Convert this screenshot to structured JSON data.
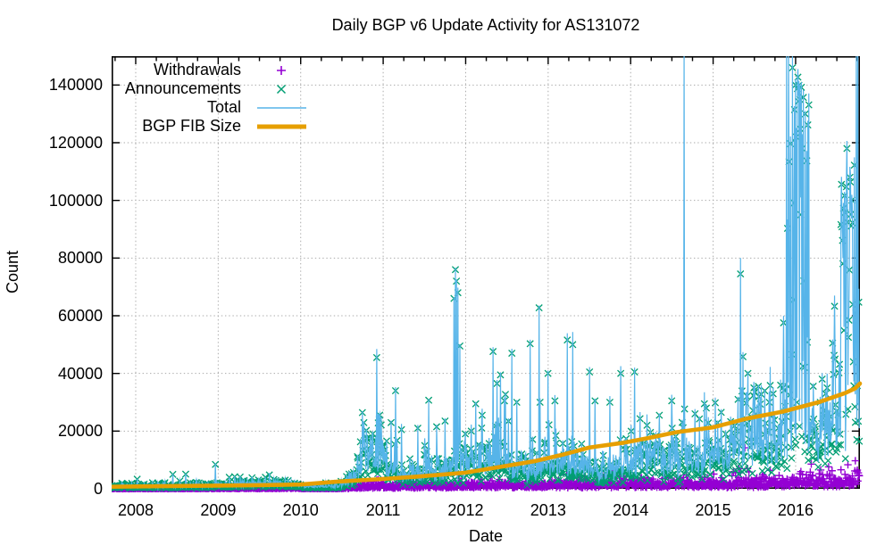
{
  "title": "Daily BGP v6 Update Activity for AS131072",
  "chart_data": {
    "type": "mixed-scatter-line",
    "title": "Daily BGP v6 Update Activity for AS131072",
    "xlabel": "Date",
    "ylabel": "Count",
    "xlim": [
      2007.708,
      2016.78
    ],
    "ylim": [
      0,
      150000
    ],
    "xticks": [
      2008,
      2009,
      2010,
      2011,
      2012,
      2013,
      2014,
      2015,
      2016
    ],
    "xtick_labels": [
      "2008",
      "2009",
      "2010",
      "2011",
      "2012",
      "2013",
      "2014",
      "2015",
      "2016"
    ],
    "x_minor_tick_interval_years": 0.25,
    "yticks": [
      0,
      20000,
      40000,
      60000,
      80000,
      100000,
      120000,
      140000
    ],
    "ytick_labels": [
      "0",
      "20000",
      "40000",
      "60000",
      "80000",
      "100000",
      "120000",
      "140000"
    ],
    "grid": "dotted-gray-at-major-ticks",
    "legend_position": "inside-top-left",
    "legend": [
      {
        "label": "Withdrawals",
        "marker": "plus",
        "color": "#9400d3"
      },
      {
        "label": "Announcements",
        "marker": "cross",
        "color": "#009e73"
      },
      {
        "label": "Total",
        "marker": "line",
        "color": "#56b4e9"
      },
      {
        "label": "BGP FIB Size",
        "marker": "thick-line",
        "color": "#e69f00"
      }
    ],
    "series": {
      "daily_baseline_x_ann_wd": [
        [
          2007.72,
          700,
          120
        ],
        [
          2008.5,
          800,
          150
        ],
        [
          2009.0,
          1000,
          200
        ],
        [
          2009.5,
          1500,
          250
        ],
        [
          2009.95,
          1300,
          300
        ],
        [
          2010.05,
          500,
          150
        ],
        [
          2010.45,
          700,
          150
        ],
        [
          2010.62,
          2500,
          400
        ],
        [
          2010.75,
          9000,
          700
        ],
        [
          2010.95,
          11000,
          900
        ],
        [
          2011.1,
          6000,
          800
        ],
        [
          2011.3,
          4000,
          800
        ],
        [
          2011.6,
          5000,
          900
        ],
        [
          2011.9,
          7000,
          1000
        ],
        [
          2012.1,
          8000,
          1100
        ],
        [
          2012.35,
          9000,
          1200
        ],
        [
          2012.6,
          7000,
          1100
        ],
        [
          2012.8,
          5500,
          1000
        ],
        [
          2013.0,
          7000,
          1300
        ],
        [
          2013.4,
          6500,
          1500
        ],
        [
          2013.7,
          4200,
          1500
        ],
        [
          2014.0,
          8000,
          1600
        ],
        [
          2014.3,
          9500,
          1500
        ],
        [
          2014.55,
          7000,
          1400
        ],
        [
          2014.8,
          9000,
          1500
        ],
        [
          2015.0,
          10500,
          1500
        ],
        [
          2015.3,
          12000,
          1600
        ],
        [
          2015.5,
          16000,
          1700
        ],
        [
          2015.75,
          17000,
          1800
        ],
        [
          2015.9,
          22000,
          2000
        ],
        [
          2016.1,
          26000,
          2200
        ],
        [
          2016.25,
          14000,
          2000
        ],
        [
          2016.42,
          18000,
          2200
        ],
        [
          2016.6,
          30000,
          2500
        ],
        [
          2016.7,
          35000,
          2800
        ],
        [
          2016.78,
          33000,
          4500
        ]
      ],
      "announcement_spikes_x_value": [
        [
          2008.45,
          5000
        ],
        [
          2009.2,
          4200
        ],
        [
          2009.62,
          4800
        ],
        [
          2010.92,
          45500
        ],
        [
          2011.15,
          34000
        ],
        [
          2011.22,
          20500
        ],
        [
          2011.42,
          21000
        ],
        [
          2011.55,
          30700
        ],
        [
          2011.65,
          21500
        ],
        [
          2011.75,
          23500
        ],
        [
          2011.86,
          66000
        ],
        [
          2011.875,
          76000
        ],
        [
          2011.89,
          72000
        ],
        [
          2011.905,
          68000
        ],
        [
          2011.93,
          49500
        ],
        [
          2012.07,
          20000
        ],
        [
          2012.2,
          25500
        ],
        [
          2012.33,
          47600
        ],
        [
          2012.38,
          36500
        ],
        [
          2012.42,
          39500
        ],
        [
          2012.47,
          30500
        ],
        [
          2012.56,
          47000
        ],
        [
          2012.62,
          30000
        ],
        [
          2012.78,
          50300
        ],
        [
          2012.9,
          30000
        ],
        [
          2013.0,
          40000
        ],
        [
          2013.08,
          30500
        ],
        [
          2013.3,
          50000
        ],
        [
          2013.5,
          40500
        ],
        [
          2013.57,
          30500
        ],
        [
          2013.75,
          30000
        ],
        [
          2013.88,
          40000
        ],
        [
          2014.05,
          40500
        ],
        [
          2014.2,
          22000
        ],
        [
          2014.35,
          25500
        ],
        [
          2014.5,
          30500
        ],
        [
          2014.65,
          155000
        ],
        [
          2014.78,
          26000
        ],
        [
          2014.92,
          28000
        ],
        [
          2015.1,
          26500
        ],
        [
          2015.3,
          31000
        ],
        [
          2015.33,
          74500
        ],
        [
          2015.42,
          40000
        ],
        [
          2015.55,
          35500
        ],
        [
          2015.68,
          30000
        ],
        [
          2015.85,
          35000
        ],
        [
          2015.89,
          152000
        ],
        [
          2015.915,
          152000
        ],
        [
          2015.96,
          146000
        ],
        [
          2016.0,
          140000
        ],
        [
          2016.05,
          135000
        ],
        [
          2016.12,
          130000
        ],
        [
          2016.3,
          30000
        ],
        [
          2016.38,
          35000
        ],
        [
          2016.45,
          50500
        ],
        [
          2016.48,
          45000
        ],
        [
          2016.62,
          118000
        ],
        [
          2016.66,
          108000
        ],
        [
          2016.735,
          155000
        ],
        [
          2016.755,
          155000
        ]
      ],
      "burst_windows": [
        {
          "x0": 2015.88,
          "x1": 2016.17,
          "lo": 45000,
          "hi": 143000,
          "p": 0.5
        },
        {
          "x0": 2016.54,
          "x1": 2016.72,
          "lo": 40000,
          "hi": 116000,
          "p": 0.5
        }
      ],
      "withdrawal_outliers_x_value": [
        [
          2015.62,
          4200
        ],
        [
          2015.8,
          4600
        ],
        [
          2016.05,
          5200
        ],
        [
          2016.2,
          4700
        ],
        [
          2016.33,
          4800
        ],
        [
          2016.42,
          4900
        ],
        [
          2016.6,
          5000
        ],
        [
          2016.74,
          6000
        ],
        [
          2016.76,
          5500
        ],
        [
          2016.77,
          4500
        ]
      ],
      "total_rule": "total = announcements + withdrawals (sky-blue line)",
      "fib_line_x_value": [
        [
          2007.72,
          700
        ],
        [
          2008.3,
          900
        ],
        [
          2009.0,
          1100
        ],
        [
          2009.6,
          1300
        ],
        [
          2010.0,
          1500
        ],
        [
          2010.45,
          2500
        ],
        [
          2011.0,
          3400
        ],
        [
          2011.4,
          4200
        ],
        [
          2011.75,
          5000
        ],
        [
          2012.0,
          5600
        ],
        [
          2012.4,
          7500
        ],
        [
          2012.85,
          9650
        ],
        [
          2013.2,
          12000
        ],
        [
          2013.5,
          14300
        ],
        [
          2013.9,
          15900
        ],
        [
          2014.2,
          17500
        ],
        [
          2014.55,
          19600
        ],
        [
          2015.0,
          21300
        ],
        [
          2015.4,
          24300
        ],
        [
          2015.85,
          26800
        ],
        [
          2016.3,
          30200
        ],
        [
          2016.6,
          33200
        ],
        [
          2016.72,
          34800
        ],
        [
          2016.78,
          36500
        ]
      ],
      "noise_model": {
        "seed": 42,
        "step_years": 0.006,
        "ann_sigma": 0.5,
        "wd_sigma": 0.55
      }
    },
    "colors": {
      "withdrawals": "#9400d3",
      "announcements": "#009e73",
      "total": "#56b4e9",
      "fib": "#e69f00",
      "grid": "#ababab",
      "border": "#000000"
    }
  }
}
